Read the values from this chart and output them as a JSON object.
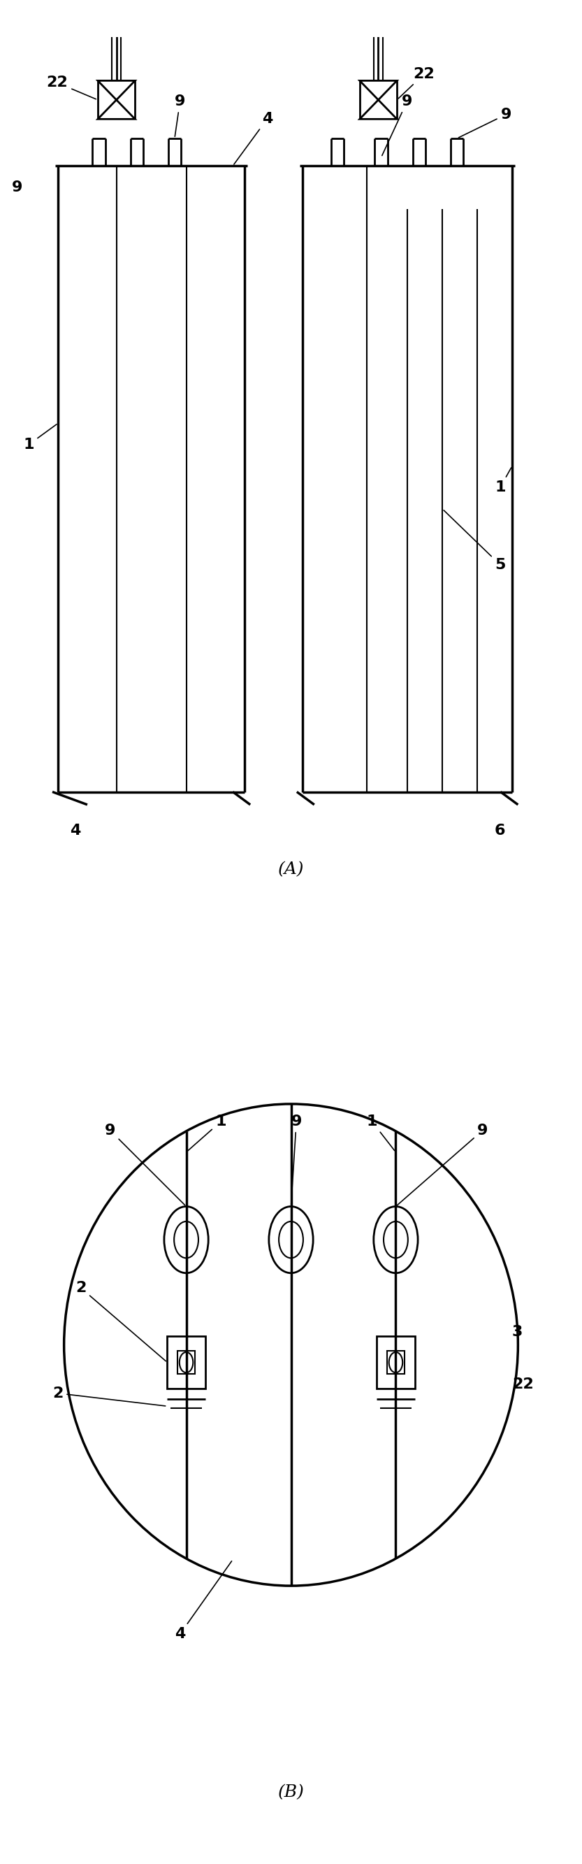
{
  "fig_width": 8.33,
  "fig_height": 26.66,
  "bg_color": "#ffffff",
  "line_color": "#000000",
  "label_A": "(A)",
  "label_B": "(B)",
  "lw_thick": 2.5,
  "lw_thin": 1.5,
  "lw_medium": 2.0,
  "font_size_label": 18,
  "font_size_num": 16
}
